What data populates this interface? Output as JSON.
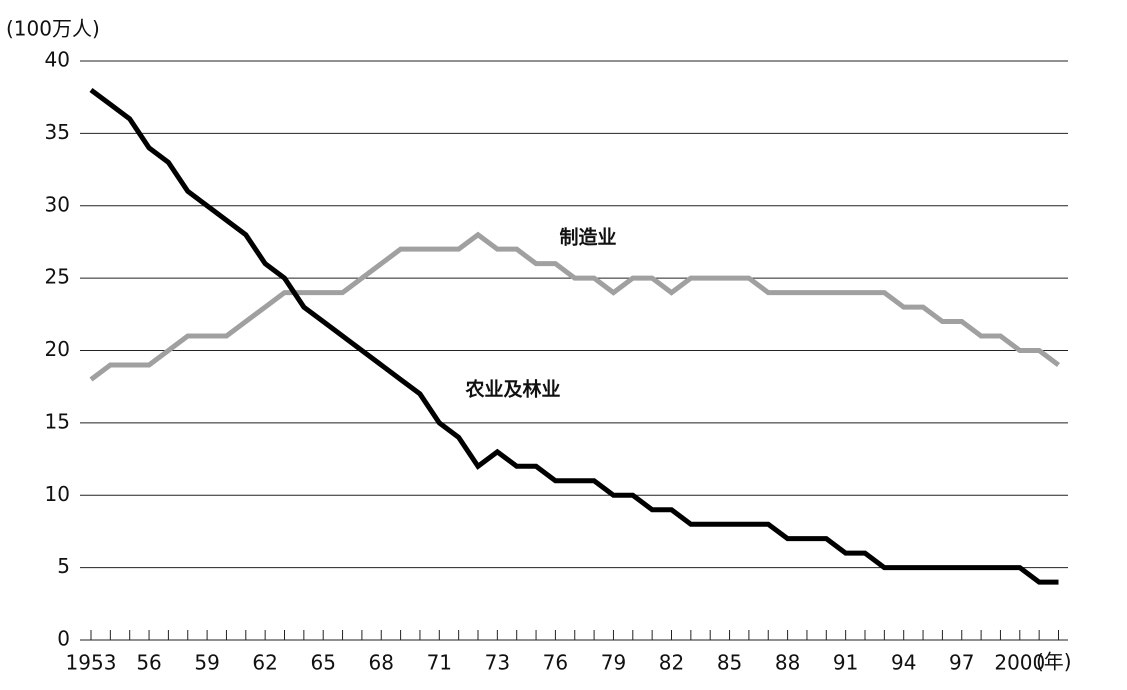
{
  "chart_data": {
    "type": "line",
    "y_label": "(100万人)",
    "x_label": "(年)",
    "categories": [
      "1953",
      null,
      null,
      "56",
      null,
      null,
      "59",
      null,
      null,
      "62",
      null,
      null,
      "65",
      null,
      null,
      "68",
      null,
      null,
      "71",
      null,
      null,
      "73",
      null,
      null,
      "76",
      null,
      null,
      "79",
      null,
      null,
      "82",
      null,
      null,
      "85",
      null,
      null,
      "88",
      null,
      null,
      "91",
      null,
      null,
      "94",
      null,
      null,
      "97",
      null,
      null,
      "2000",
      null,
      null
    ],
    "series": [
      {
        "name": "制造业",
        "color": "#a0a0a0",
        "values": [
          18,
          19,
          19,
          19,
          20,
          21,
          21,
          21,
          22,
          23,
          24,
          24,
          24,
          24,
          25,
          26,
          27,
          27,
          27,
          27,
          28,
          27,
          27,
          26,
          26,
          25,
          25,
          24,
          25,
          25,
          24,
          25,
          25,
          25,
          25,
          24,
          24,
          24,
          24,
          24,
          24,
          24,
          23,
          23,
          22,
          22,
          21,
          21,
          20,
          20,
          19
        ]
      },
      {
        "name": "农业及林业",
        "color": "#000000",
        "values": [
          38,
          37,
          36,
          34,
          33,
          31,
          30,
          29,
          28,
          26,
          25,
          23,
          22,
          21,
          20,
          19,
          18,
          17,
          15,
          14,
          12,
          13,
          12,
          12,
          11,
          11,
          11,
          10,
          10,
          9,
          9,
          8,
          8,
          8,
          8,
          8,
          7,
          7,
          7,
          6,
          6,
          5,
          5,
          5,
          5,
          5,
          5,
          5,
          5,
          4,
          4
        ]
      }
    ],
    "ylim": [
      0,
      40
    ],
    "yticks": [
      0,
      5,
      10,
      15,
      20,
      25,
      30,
      35,
      40
    ],
    "grid": true
  }
}
